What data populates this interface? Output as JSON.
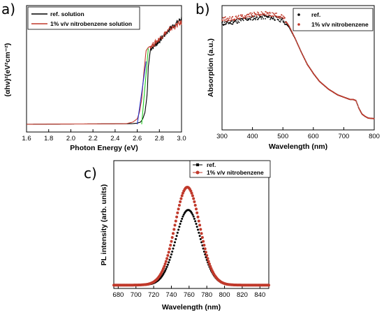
{
  "chart_data": [
    {
      "type": "line",
      "panel_label": "a)",
      "xlabel": "Photon Energy (eV)",
      "ylabel": "(αhν)²(eV²cm⁻²)",
      "xlim": [
        1.6,
        3.0
      ],
      "xticks": [
        "1.6",
        "1.8",
        "2.0",
        "2.2",
        "2.4",
        "2.6",
        "2.8",
        "3.0"
      ],
      "legend": "top-left",
      "series": [
        {
          "name": "ref. solution",
          "color": "#000000",
          "x": [
            1.6,
            2.55,
            2.6,
            2.63,
            2.65,
            2.67,
            2.69,
            2.7,
            2.72,
            2.75,
            2.8,
            2.85,
            2.9,
            2.95,
            3.0
          ],
          "y": [
            0.02,
            0.025,
            0.03,
            0.04,
            0.07,
            0.13,
            0.3,
            0.55,
            0.72,
            0.74,
            0.79,
            0.85,
            0.91,
            0.95,
            1.0
          ]
        },
        {
          "name": "1% v/v nitrobenzene solution",
          "color": "#c0392b",
          "x": [
            1.6,
            2.5,
            2.56,
            2.6,
            2.62,
            2.64,
            2.66,
            2.68,
            2.7,
            2.75,
            2.8,
            2.85,
            2.9,
            2.95,
            3.0
          ],
          "y": [
            0.02,
            0.025,
            0.04,
            0.07,
            0.13,
            0.25,
            0.5,
            0.7,
            0.73,
            0.76,
            0.81,
            0.86,
            0.9,
            0.93,
            0.96
          ]
        }
      ],
      "fit_lines": [
        {
          "color": "#2233cc",
          "x": [
            2.6,
            2.68
          ],
          "y": [
            0.02,
            0.6
          ]
        },
        {
          "color": "#22cc22",
          "x": [
            2.64,
            2.7
          ],
          "y": [
            0.02,
            0.72
          ]
        }
      ]
    },
    {
      "type": "scatter",
      "panel_label": "b)",
      "xlabel": "Wavelength (nm)",
      "ylabel": "Absorption (a.u.)",
      "xlim": [
        300,
        800
      ],
      "xticks": [
        "300",
        "400",
        "500",
        "600",
        "700",
        "800"
      ],
      "legend": "top-right",
      "series": [
        {
          "name": "ref.",
          "color": "#000000",
          "x": [
            300,
            330,
            360,
            400,
            440,
            470,
            500,
            520,
            540,
            560,
            580,
            600,
            620,
            650,
            680,
            700,
            720,
            730,
            740,
            750,
            760,
            770,
            780,
            800
          ],
          "y": [
            0.89,
            0.9,
            0.92,
            0.94,
            0.95,
            0.94,
            0.92,
            0.86,
            0.76,
            0.64,
            0.53,
            0.45,
            0.38,
            0.31,
            0.26,
            0.24,
            0.22,
            0.22,
            0.21,
            0.14,
            0.09,
            0.07,
            0.055,
            0.05
          ]
        },
        {
          "name": "1% v/v nitrobenzene",
          "color": "#c0392b",
          "x": [
            300,
            330,
            360,
            400,
            440,
            470,
            500,
            520,
            540,
            560,
            580,
            600,
            620,
            650,
            680,
            700,
            720,
            730,
            740,
            750,
            760,
            770,
            780,
            800
          ],
          "y": [
            0.93,
            0.93,
            0.95,
            0.97,
            0.98,
            0.97,
            0.95,
            0.87,
            0.76,
            0.64,
            0.53,
            0.45,
            0.38,
            0.31,
            0.26,
            0.24,
            0.22,
            0.22,
            0.21,
            0.14,
            0.09,
            0.07,
            0.055,
            0.05
          ]
        }
      ]
    },
    {
      "type": "scatter",
      "panel_label": "c)",
      "xlabel": "Wavelength (nm)",
      "ylabel": "PL intensity (arb. units)",
      "xlim": [
        675,
        850
      ],
      "xticks": [
        "680",
        "700",
        "720",
        "740",
        "760",
        "780",
        "800",
        "820",
        "840"
      ],
      "legend": "top-right",
      "series": [
        {
          "name": "ref.",
          "color": "#000000",
          "peak_x": 759,
          "peak_y": 0.66,
          "sigma": 16
        },
        {
          "name": "1% v/v nitrobenzene",
          "color": "#c0392b",
          "peak_x": 758,
          "peak_y": 0.86,
          "sigma": 16
        }
      ]
    }
  ]
}
